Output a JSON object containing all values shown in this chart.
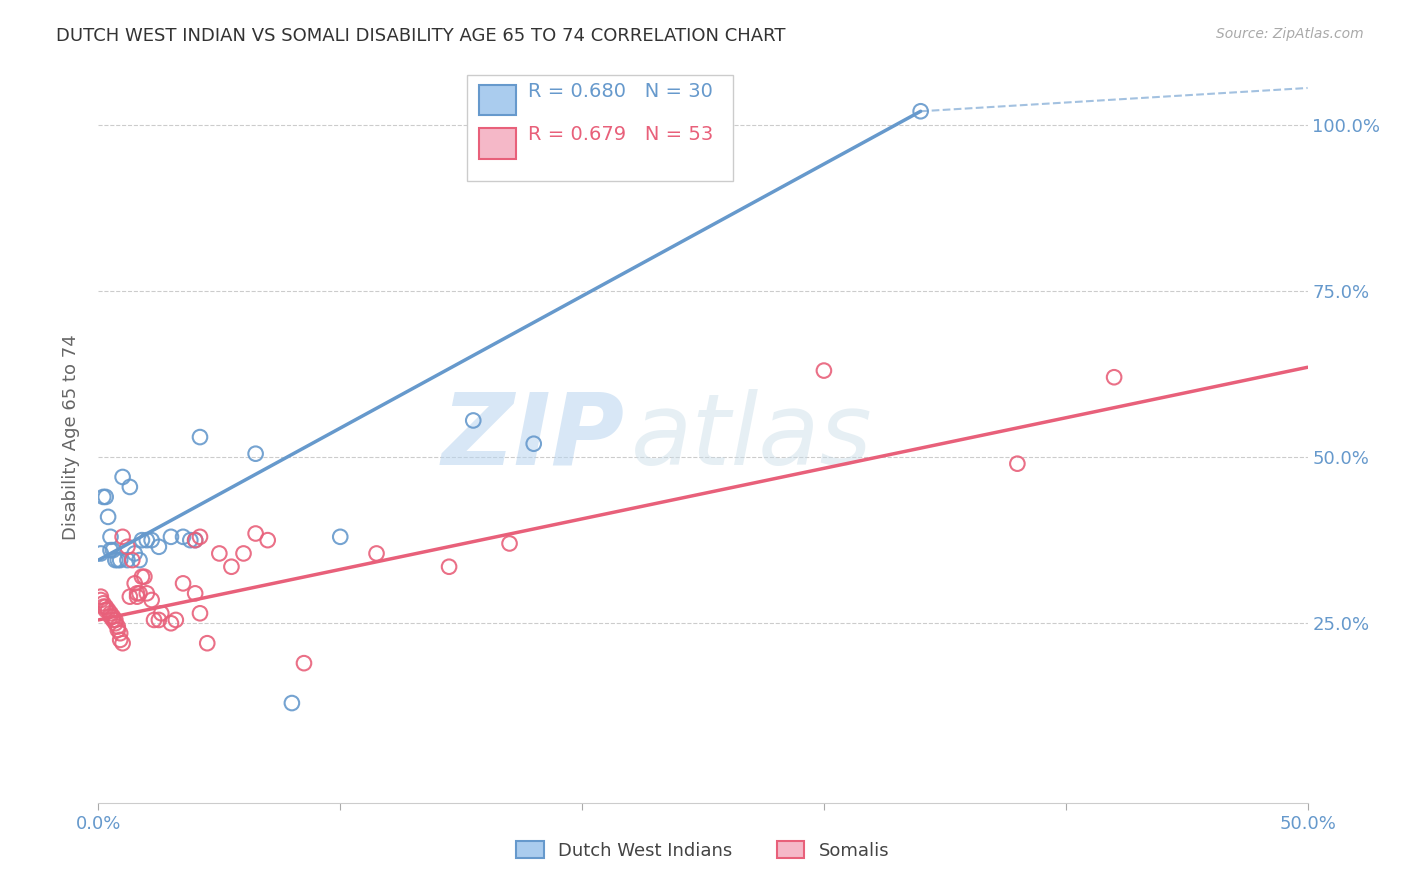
{
  "title": "DUTCH WEST INDIAN VS SOMALI DISABILITY AGE 65 TO 74 CORRELATION CHART",
  "source": "Source: ZipAtlas.com",
  "ylabel": "Disability Age 65 to 74",
  "watermark_zip": "ZIP",
  "watermark_atlas": "atlas",
  "xlim": [
    0.0,
    0.5
  ],
  "ylim": [
    -0.02,
    1.08
  ],
  "xticks": [
    0.0,
    0.1,
    0.2,
    0.3,
    0.4,
    0.5
  ],
  "xtick_labels": [
    "0.0%",
    "",
    "",
    "",
    "",
    "50.0%"
  ],
  "yticks": [
    0.25,
    0.5,
    0.75,
    1.0
  ],
  "ytick_labels": [
    "25.0%",
    "50.0%",
    "75.0%",
    "100.0%"
  ],
  "blue_color": "#6699CC",
  "pink_color": "#E8607A",
  "blue_R": 0.68,
  "blue_N": 30,
  "pink_R": 0.679,
  "pink_N": 53,
  "blue_scatter": [
    [
      0.001,
      0.355
    ],
    [
      0.002,
      0.44
    ],
    [
      0.003,
      0.44
    ],
    [
      0.004,
      0.41
    ],
    [
      0.005,
      0.38
    ],
    [
      0.005,
      0.36
    ],
    [
      0.006,
      0.36
    ],
    [
      0.007,
      0.345
    ],
    [
      0.008,
      0.345
    ],
    [
      0.009,
      0.345
    ],
    [
      0.01,
      0.47
    ],
    [
      0.012,
      0.345
    ],
    [
      0.013,
      0.455
    ],
    [
      0.015,
      0.355
    ],
    [
      0.017,
      0.345
    ],
    [
      0.018,
      0.375
    ],
    [
      0.02,
      0.375
    ],
    [
      0.022,
      0.375
    ],
    [
      0.025,
      0.365
    ],
    [
      0.03,
      0.38
    ],
    [
      0.035,
      0.38
    ],
    [
      0.038,
      0.375
    ],
    [
      0.04,
      0.375
    ],
    [
      0.042,
      0.53
    ],
    [
      0.065,
      0.505
    ],
    [
      0.08,
      0.13
    ],
    [
      0.1,
      0.38
    ],
    [
      0.155,
      0.555
    ],
    [
      0.18,
      0.52
    ],
    [
      0.34,
      1.02
    ]
  ],
  "pink_scatter": [
    [
      0.001,
      0.285
    ],
    [
      0.001,
      0.29
    ],
    [
      0.002,
      0.28
    ],
    [
      0.002,
      0.275
    ],
    [
      0.003,
      0.275
    ],
    [
      0.003,
      0.27
    ],
    [
      0.004,
      0.27
    ],
    [
      0.005,
      0.265
    ],
    [
      0.005,
      0.26
    ],
    [
      0.006,
      0.26
    ],
    [
      0.006,
      0.255
    ],
    [
      0.007,
      0.255
    ],
    [
      0.007,
      0.25
    ],
    [
      0.008,
      0.245
    ],
    [
      0.008,
      0.24
    ],
    [
      0.009,
      0.235
    ],
    [
      0.009,
      0.225
    ],
    [
      0.01,
      0.22
    ],
    [
      0.01,
      0.38
    ],
    [
      0.012,
      0.365
    ],
    [
      0.013,
      0.29
    ],
    [
      0.014,
      0.345
    ],
    [
      0.015,
      0.31
    ],
    [
      0.016,
      0.295
    ],
    [
      0.016,
      0.29
    ],
    [
      0.017,
      0.295
    ],
    [
      0.018,
      0.32
    ],
    [
      0.019,
      0.32
    ],
    [
      0.02,
      0.295
    ],
    [
      0.022,
      0.285
    ],
    [
      0.023,
      0.255
    ],
    [
      0.025,
      0.255
    ],
    [
      0.026,
      0.265
    ],
    [
      0.03,
      0.25
    ],
    [
      0.032,
      0.255
    ],
    [
      0.035,
      0.31
    ],
    [
      0.04,
      0.375
    ],
    [
      0.04,
      0.295
    ],
    [
      0.042,
      0.38
    ],
    [
      0.042,
      0.265
    ],
    [
      0.045,
      0.22
    ],
    [
      0.05,
      0.355
    ],
    [
      0.055,
      0.335
    ],
    [
      0.06,
      0.355
    ],
    [
      0.065,
      0.385
    ],
    [
      0.07,
      0.375
    ],
    [
      0.085,
      0.19
    ],
    [
      0.115,
      0.355
    ],
    [
      0.145,
      0.335
    ],
    [
      0.17,
      0.37
    ],
    [
      0.3,
      0.63
    ],
    [
      0.38,
      0.49
    ],
    [
      0.42,
      0.62
    ]
  ],
  "blue_line_solid": [
    [
      0.0,
      0.345
    ],
    [
      0.34,
      1.02
    ]
  ],
  "blue_line_dashed": [
    [
      0.34,
      1.02
    ],
    [
      0.5,
      1.055
    ]
  ],
  "pink_line": [
    [
      0.0,
      0.255
    ],
    [
      0.5,
      0.635
    ]
  ],
  "background_color": "#ffffff",
  "grid_color": "#cccccc",
  "title_color": "#333333",
  "axis_tick_color": "#6699CC",
  "legend_blue_label": "Dutch West Indians",
  "legend_pink_label": "Somalis"
}
